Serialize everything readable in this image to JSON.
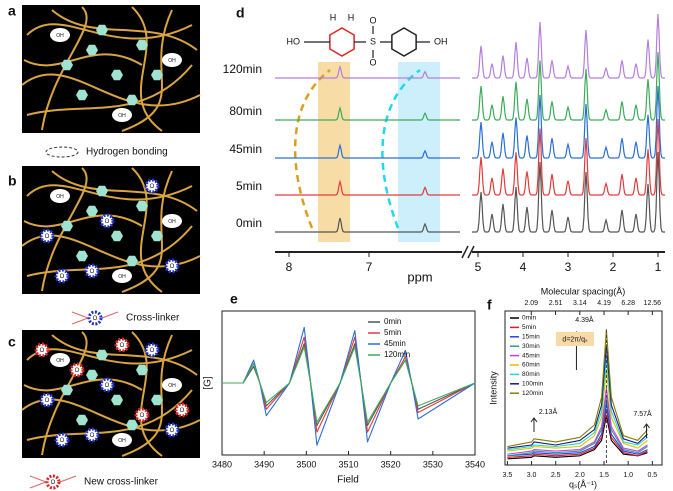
{
  "panel_labels": [
    "a",
    "b",
    "c",
    "d",
    "e",
    "f"
  ],
  "schematic": {
    "oh_label": "OH",
    "o_label": "O",
    "legend": [
      "Hydrogen bonding",
      "Cross-linker",
      "New cross-linker"
    ]
  },
  "nmr": {
    "molecule": {
      "left": "HO",
      "right": "OH",
      "sulfur": "S",
      "oxygen": "O",
      "h_left": "H",
      "h_right": "H"
    },
    "times": [
      "120min",
      "80min",
      "45min",
      "5min",
      "0min"
    ],
    "colors": [
      "#b57edc",
      "#3cab5a",
      "#2a6fd6",
      "#e03c3c",
      "#555555"
    ],
    "xticks": [
      8,
      7,
      5,
      4,
      3,
      2,
      1
    ],
    "x_label": "ppm"
  },
  "chart_data": [
    {
      "type": "line",
      "x_label": "Field",
      "y_label": "[G]",
      "legend": "upper right",
      "x": [
        3480,
        3485,
        3487.5,
        3489,
        3490.5,
        3496,
        3499.5,
        3501,
        3502.5,
        3508,
        3511.5,
        3513,
        3514.5,
        3520,
        3523.5,
        3525,
        3526.5,
        3540
      ],
      "xlim": [
        3480,
        3540
      ],
      "xticks": [
        3480,
        3490,
        3500,
        3510,
        3520,
        3530,
        3540
      ],
      "ylim": [
        -1.1,
        1.1
      ],
      "series": [
        {
          "name": "0min",
          "color": "#555555",
          "values": [
            0,
            0,
            0.25,
            0,
            -0.35,
            0,
            0.6,
            0,
            -0.65,
            0,
            0.6,
            0,
            -0.65,
            0,
            0.35,
            0,
            -0.4,
            0
          ]
        },
        {
          "name": "5min",
          "color": "#e03c3c",
          "values": [
            0,
            0,
            0.3,
            0,
            -0.4,
            0,
            0.7,
            0,
            -0.75,
            0,
            0.7,
            0,
            -0.75,
            0,
            0.4,
            0,
            -0.45,
            0
          ]
        },
        {
          "name": "45min",
          "color": "#2a6fd6",
          "values": [
            0,
            0,
            0.35,
            0,
            -0.5,
            0,
            0.85,
            0,
            -0.95,
            0,
            0.8,
            0,
            -0.9,
            0,
            0.5,
            0,
            -0.55,
            0
          ]
        },
        {
          "name": "120min",
          "color": "#3cab5a",
          "values": [
            0,
            0,
            0.3,
            0,
            -0.3,
            0,
            0.55,
            0,
            -0.6,
            0,
            0.55,
            0,
            -0.6,
            0,
            0.35,
            0,
            -0.35,
            0
          ]
        }
      ]
    },
    {
      "type": "line",
      "x_label": "qₛ(Å⁻¹)",
      "y_label": "Intensity",
      "x2_label": "Molecular spacing(Å)",
      "x": [
        3.5,
        3.0,
        2.95,
        2.5,
        2.0,
        1.7,
        1.55,
        1.45,
        1.35,
        1.1,
        0.8,
        0.6
      ],
      "xlim": [
        3.55,
        0.3
      ],
      "xticks": [
        3.5,
        {
          "value": 3,
          "label": "3.0"
        },
        2.5,
        {
          "value": 2,
          "label": "2.0"
        },
        1.5,
        {
          "value": 1,
          "label": "1.0"
        },
        0.5
      ],
      "x2ticks": [
        2.09,
        2.51,
        3.14,
        4.19,
        6.28,
        12.56
      ],
      "ylim": [
        0,
        1
      ],
      "annotations": [
        "2.13Å",
        "4.39Å",
        "7.57Å",
        "d=2π/qₛ"
      ],
      "series": [
        {
          "name": "0min",
          "color": "#000000",
          "values": [
            0.04,
            0.05,
            0.06,
            0.05,
            0.06,
            0.1,
            0.16,
            0.32,
            0.16,
            0.07,
            0.06,
            0.08
          ]
        },
        {
          "name": "5min",
          "color": "#e41a1c",
          "values": [
            0.05,
            0.06,
            0.07,
            0.06,
            0.07,
            0.11,
            0.18,
            0.36,
            0.18,
            0.08,
            0.06,
            0.09
          ]
        },
        {
          "name": "15min",
          "color": "#1f3fff",
          "values": [
            0.06,
            0.07,
            0.08,
            0.07,
            0.08,
            0.12,
            0.2,
            0.4,
            0.2,
            0.09,
            0.07,
            0.1
          ]
        },
        {
          "name": "30min",
          "color": "#2a9d8f",
          "values": [
            0.06,
            0.08,
            0.09,
            0.08,
            0.09,
            0.14,
            0.23,
            0.45,
            0.23,
            0.1,
            0.08,
            0.12
          ]
        },
        {
          "name": "45min",
          "color": "#d040d0",
          "values": [
            0.07,
            0.09,
            0.1,
            0.09,
            0.1,
            0.15,
            0.25,
            0.5,
            0.25,
            0.11,
            0.09,
            0.13
          ]
        },
        {
          "name": "60min",
          "color": "#d4c800",
          "values": [
            0.09,
            0.11,
            0.12,
            0.11,
            0.12,
            0.19,
            0.31,
            0.62,
            0.31,
            0.14,
            0.11,
            0.16
          ]
        },
        {
          "name": "80min",
          "color": "#2bd4d4",
          "values": [
            0.1,
            0.12,
            0.13,
            0.12,
            0.14,
            0.21,
            0.35,
            0.7,
            0.35,
            0.15,
            0.13,
            0.18
          ]
        },
        {
          "name": "100min",
          "color": "#1a1a80",
          "values": [
            0.11,
            0.13,
            0.15,
            0.13,
            0.16,
            0.23,
            0.39,
            0.78,
            0.39,
            0.17,
            0.14,
            0.2
          ]
        },
        {
          "name": "120min",
          "color": "#808000",
          "values": [
            0.12,
            0.15,
            0.17,
            0.15,
            0.18,
            0.26,
            0.44,
            0.88,
            0.44,
            0.19,
            0.16,
            0.23
          ]
        }
      ]
    }
  ]
}
